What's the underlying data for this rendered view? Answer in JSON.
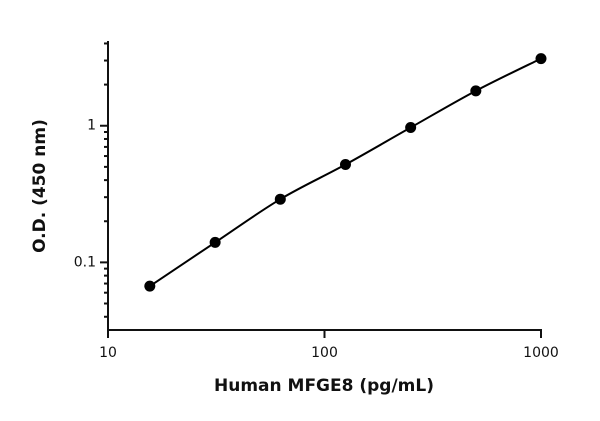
{
  "chart_data": {
    "type": "scatter",
    "xlabel": "Human MFGE8 (pg/mL)",
    "ylabel": "O.D. (450 nm)",
    "x": [
      15.6,
      31.25,
      62.5,
      125,
      250,
      500,
      1000
    ],
    "series": [
      {
        "color": "#000000",
        "values": [
          0.067,
          0.14,
          0.29,
          0.52,
          0.97,
          1.8,
          3.1
        ]
      }
    ],
    "xlog": true,
    "ylog": true,
    "xlim": [
      10,
      1000
    ],
    "ylim": [
      0.032,
      4.1
    ],
    "xticks": [
      10,
      100,
      1000
    ],
    "yticks": [
      0.1,
      1
    ],
    "yminorticks": [
      0.04,
      0.05,
      0.06,
      0.07,
      0.08,
      0.09,
      0.2,
      0.3,
      0.4,
      0.5,
      0.6,
      0.7,
      0.8,
      0.9,
      2,
      3,
      4
    ],
    "fit_line": true
  }
}
